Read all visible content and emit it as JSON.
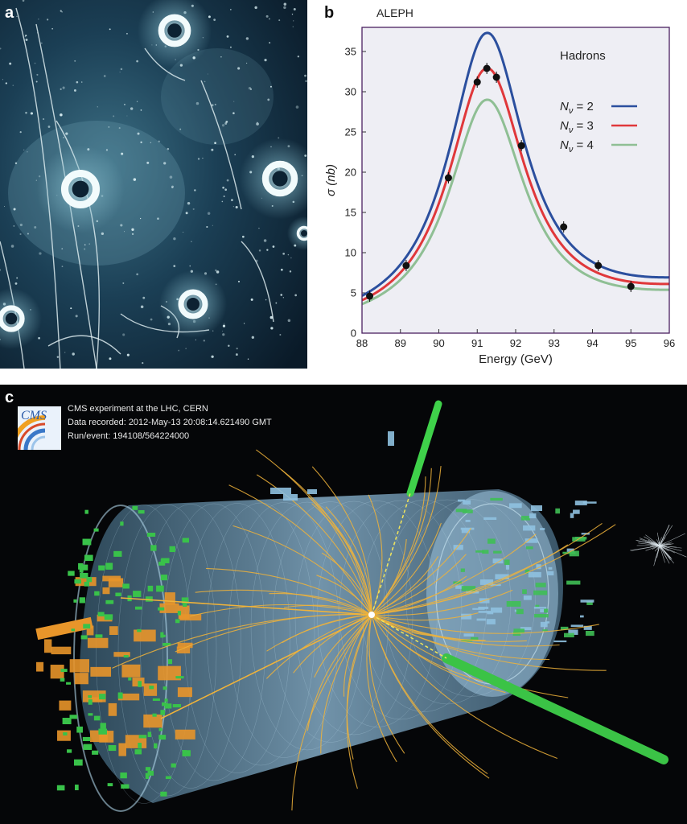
{
  "panels": {
    "a": {
      "label": "a"
    },
    "b": {
      "label": "b"
    },
    "c": {
      "label": "c"
    }
  },
  "cms": {
    "logo_text": "CMS",
    "line1": "CMS experiment at the LHC, CERN",
    "line2": "Data recorded: 2012-May-13 20:08:14.621490 GMT",
    "line3": "Run/event: 194108/564224000"
  },
  "chart_data": {
    "type": "line",
    "title": "ALEPH",
    "annotation": "Hadrons",
    "xlabel": "Energy (GeV)",
    "ylabel": "σ (nb)",
    "xlim": [
      88,
      96
    ],
    "ylim": [
      0,
      38
    ],
    "xticks": [
      88,
      89,
      90,
      91,
      92,
      93,
      94,
      95,
      96
    ],
    "yticks": [
      0,
      5,
      10,
      15,
      20,
      25,
      30,
      35
    ],
    "legend_position": "right",
    "series": [
      {
        "name": "N_ν = 2",
        "name_main": "N",
        "name_sub": "ν",
        "name_rest": " = 2",
        "color": "#2b4f9e",
        "peak": 37.3
      },
      {
        "name": "N_ν = 3",
        "name_main": "N",
        "name_sub": "ν",
        "name_rest": " = 3",
        "color": "#e0383b",
        "peak": 32.9
      },
      {
        "name": "N_ν = 4",
        "name_main": "N",
        "name_sub": "ν",
        "name_rest": " = 4",
        "color": "#8fbf94",
        "peak": 29.0
      }
    ],
    "points": {
      "x": [
        88.2,
        89.15,
        90.25,
        91.0,
        91.25,
        91.5,
        92.15,
        93.25,
        94.15,
        95.0
      ],
      "y": [
        4.6,
        8.4,
        19.3,
        31.2,
        32.9,
        31.8,
        23.3,
        13.2,
        8.4,
        5.8
      ]
    }
  }
}
